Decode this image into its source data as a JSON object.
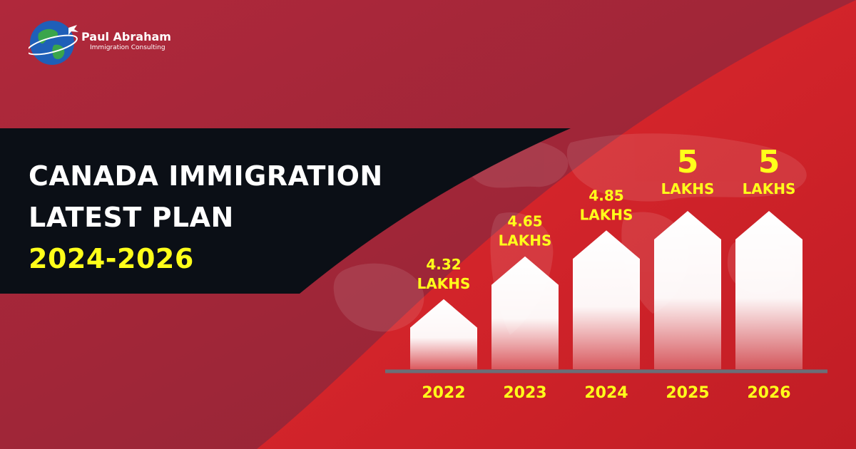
{
  "brand": {
    "name": "Paul Abraham",
    "tagline": "Immigration Consulting",
    "icon": "globe-plane-icon"
  },
  "headline": {
    "line1": "CANADA IMMIGRATION",
    "line2": "LATEST PLAN",
    "line3": "2024-2026"
  },
  "colors": {
    "background": "#a72a3a",
    "accent_red": "#d1222b",
    "title_band": "#0b0f16",
    "highlight_yellow": "#ffff1a",
    "bar_white": "#ffffff"
  },
  "chart_data": {
    "type": "bar",
    "categories": [
      "2022",
      "2023",
      "2024",
      "2025",
      "2026"
    ],
    "values": [
      4.32,
      4.65,
      4.85,
      5,
      5
    ],
    "value_labels": [
      [
        "4.32",
        "LAKHS"
      ],
      [
        "4.65",
        "LAKHS"
      ],
      [
        "4.85",
        "LAKHS"
      ],
      [
        "5",
        "LAKHS"
      ],
      [
        "5",
        "LAKHS"
      ]
    ],
    "title": "",
    "xlabel": "",
    "ylabel": "",
    "grid": false,
    "legend": "none"
  }
}
